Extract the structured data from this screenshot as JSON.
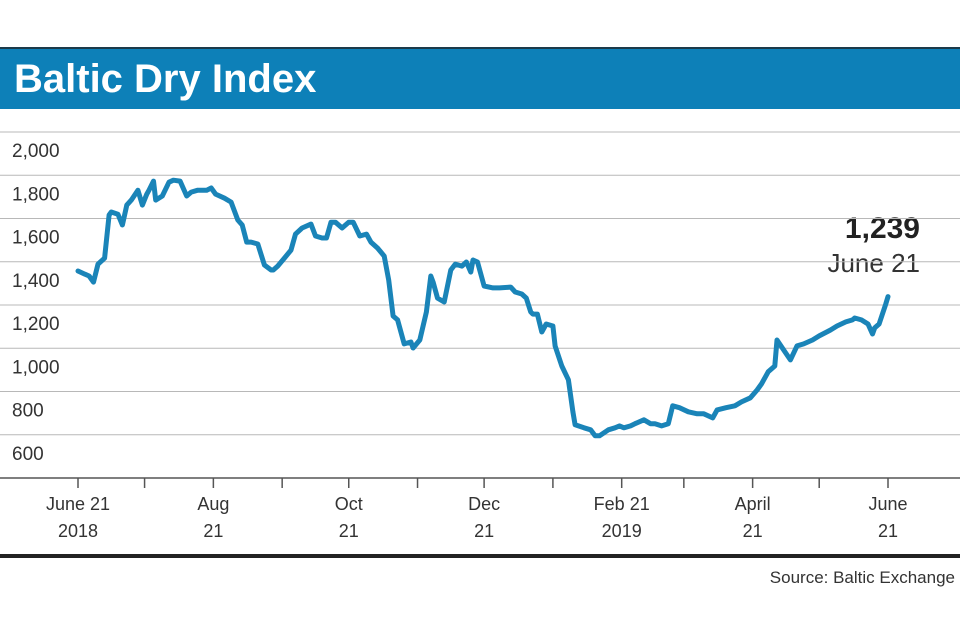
{
  "chart_data": {
    "type": "line",
    "title": "Baltic Dry Index",
    "source": "Source: Baltic Exchange",
    "color": "#1a84b8",
    "grid": true,
    "annotation": {
      "text": "1,239",
      "subtext": "June 21"
    },
    "xlim": [
      "2018-06-21",
      "2019-06-21"
    ],
    "xticks": [
      {
        "value": "2018-06-21",
        "label": [
          "June 21",
          "2018"
        ]
      },
      {
        "value": "2018-08-21",
        "label": [
          "Aug",
          "21"
        ]
      },
      {
        "value": "2018-10-21",
        "label": [
          "Oct",
          "21"
        ]
      },
      {
        "value": "2018-12-21",
        "label": [
          "Dec",
          "21"
        ]
      },
      {
        "value": "2019-02-21",
        "label": [
          "Feb 21",
          "2019"
        ]
      },
      {
        "value": "2019-04-21",
        "label": [
          "April",
          "21"
        ]
      },
      {
        "value": "2019-06-21",
        "label": [
          "June",
          "21"
        ]
      }
    ],
    "xminor_ticks": [
      "2018-07-21",
      "2018-09-21",
      "2018-11-21",
      "2019-01-21",
      "2019-03-21",
      "2019-05-21"
    ],
    "ylim": [
      400,
      2000
    ],
    "yticks": [
      600,
      800,
      {
        "value": 1000,
        "label": "1,000"
      },
      {
        "value": 1200,
        "label": "1,200"
      },
      {
        "value": 1400,
        "label": "1,400"
      },
      {
        "value": 1600,
        "label": "1,600"
      },
      {
        "value": 1800,
        "label": "1,800"
      },
      {
        "value": 2000,
        "label": "2,000"
      }
    ],
    "x": [
      "2018-06-21",
      "2018-06-24",
      "2018-06-26",
      "2018-06-28",
      "2018-06-30",
      "2018-07-03",
      "2018-07-05",
      "2018-07-06",
      "2018-07-09",
      "2018-07-11",
      "2018-07-13",
      "2018-07-15",
      "2018-07-18",
      "2018-07-20",
      "2018-07-22",
      "2018-07-23",
      "2018-07-25",
      "2018-07-26",
      "2018-07-29",
      "2018-08-01",
      "2018-08-03",
      "2018-08-06",
      "2018-08-09",
      "2018-08-11",
      "2018-08-14",
      "2018-08-18",
      "2018-08-20",
      "2018-08-22",
      "2018-08-26",
      "2018-08-29",
      "2018-09-01",
      "2018-09-03",
      "2018-09-05",
      "2018-09-07",
      "2018-09-10",
      "2018-09-13",
      "2018-09-16",
      "2018-09-17",
      "2018-09-19",
      "2018-09-22",
      "2018-09-25",
      "2018-09-27",
      "2018-09-30",
      "2018-10-04",
      "2018-10-06",
      "2018-10-09",
      "2018-10-11",
      "2018-10-13",
      "2018-10-15",
      "2018-10-18",
      "2018-10-21",
      "2018-10-23",
      "2018-10-26",
      "2018-10-29",
      "2018-10-31",
      "2018-11-03",
      "2018-11-06",
      "2018-11-08",
      "2018-11-10",
      "2018-11-12",
      "2018-11-15",
      "2018-11-18",
      "2018-11-19",
      "2018-11-22",
      "2018-11-25",
      "2018-11-27",
      "2018-11-28",
      "2018-11-30",
      "2018-12-03",
      "2018-12-06",
      "2018-12-08",
      "2018-12-11",
      "2018-12-13",
      "2018-12-15",
      "2018-12-16",
      "2018-12-18",
      "2018-12-21",
      "2018-12-25",
      "2018-12-28",
      "2019-01-02",
      "2019-01-04",
      "2019-01-07",
      "2019-01-09",
      "2019-01-11",
      "2019-01-12",
      "2019-01-14",
      "2019-01-16",
      "2019-01-18",
      "2019-01-21",
      "2019-01-22",
      "2019-01-25",
      "2019-01-28",
      "2019-01-30",
      "2019-01-31",
      "2019-02-04",
      "2019-02-07",
      "2019-02-09",
      "2019-02-11",
      "2019-02-15",
      "2019-02-18",
      "2019-02-20",
      "2019-02-22",
      "2019-02-25",
      "2019-02-27",
      "2019-03-03",
      "2019-03-06",
      "2019-03-08",
      "2019-03-11",
      "2019-03-14",
      "2019-03-16",
      "2019-03-19",
      "2019-03-23",
      "2019-03-27",
      "2019-03-30",
      "2019-04-03",
      "2019-04-05",
      "2019-04-09",
      "2019-04-13",
      "2019-04-16",
      "2019-04-20",
      "2019-04-23",
      "2019-04-25",
      "2019-04-28",
      "2019-05-01",
      "2019-05-02",
      "2019-05-05",
      "2019-05-08",
      "2019-05-11",
      "2019-05-14",
      "2019-05-18",
      "2019-05-21",
      "2019-05-26",
      "2019-05-29",
      "2019-06-02",
      "2019-06-05",
      "2019-06-06",
      "2019-06-09",
      "2019-06-12",
      "2019-06-14",
      "2019-06-15",
      "2019-06-17",
      "2019-06-20",
      "2019-06-21"
    ],
    "values": [
      1357,
      1343,
      1334,
      1306,
      1389,
      1417,
      1616,
      1630,
      1620,
      1570,
      1662,
      1685,
      1731,
      1662,
      1713,
      1731,
      1773,
      1685,
      1704,
      1768,
      1777,
      1773,
      1704,
      1722,
      1731,
      1731,
      1741,
      1713,
      1694,
      1676,
      1593,
      1570,
      1491,
      1491,
      1482,
      1385,
      1362,
      1362,
      1380,
      1417,
      1454,
      1528,
      1556,
      1574,
      1519,
      1510,
      1510,
      1583,
      1583,
      1556,
      1583,
      1583,
      1519,
      1528,
      1491,
      1463,
      1426,
      1315,
      1149,
      1131,
      1020,
      1029,
      1001,
      1038,
      1168,
      1334,
      1306,
      1232,
      1214,
      1362,
      1389,
      1380,
      1399,
      1352,
      1408,
      1399,
      1288,
      1279,
      1279,
      1283,
      1260,
      1251,
      1232,
      1168,
      1158,
      1158,
      1075,
      1112,
      1103,
      1011,
      918,
      854,
      706,
      646,
      632,
      623,
      595,
      595,
      623,
      632,
      641,
      632,
      641,
      651,
      669,
      651,
      651,
      641,
      651,
      734,
      725,
      706,
      697,
      697,
      678,
      715,
      725,
      734,
      752,
      771,
      807,
      835,
      891,
      918,
      1038,
      992,
      946,
      1011,
      1020,
      1038,
      1057,
      1084,
      1103,
      1122,
      1131,
      1140,
      1131,
      1112,
      1066,
      1094,
      1112,
      1205,
      1239
    ]
  }
}
